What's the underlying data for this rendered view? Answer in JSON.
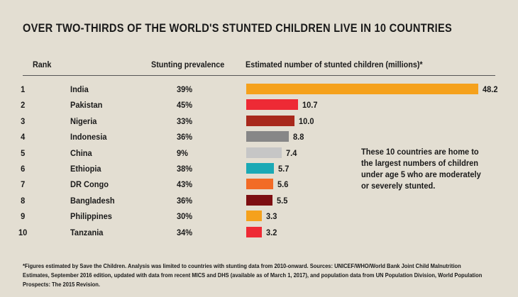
{
  "chart_data": {
    "type": "bar",
    "title": "OVER TWO-THIRDS OF THE WORLD'S STUNTED CHILDREN LIVE IN 10 COUNTRIES",
    "columns": {
      "rank": "Rank",
      "prevalence": "Stunting prevalence",
      "estimate": "Estimated number of stunted children (millions)*"
    },
    "rows": [
      {
        "rank": "1",
        "country": "India",
        "prevalence": "39%",
        "value": 48.2,
        "label": "48.2",
        "color": "#f5a11c"
      },
      {
        "rank": "2",
        "country": "Pakistan",
        "prevalence": "45%",
        "value": 10.7,
        "label": "10.7",
        "color": "#ee2a35"
      },
      {
        "rank": "3",
        "country": "Nigeria",
        "prevalence": "33%",
        "value": 10.0,
        "label": "10.0",
        "color": "#a8281c"
      },
      {
        "rank": "4",
        "country": "Indonesia",
        "prevalence": "36%",
        "value": 8.8,
        "label": "8.8",
        "color": "#878787"
      },
      {
        "rank": "5",
        "country": "China",
        "prevalence": "9%",
        "value": 7.4,
        "label": "7.4",
        "color": "#c6c6c6"
      },
      {
        "rank": "6",
        "country": "Ethiopia",
        "prevalence": "38%",
        "value": 5.7,
        "label": "5.7",
        "color": "#1ba9b5"
      },
      {
        "rank": "7",
        "country": "DR Congo",
        "prevalence": "43%",
        "value": 5.6,
        "label": "5.6",
        "color": "#f26b26"
      },
      {
        "rank": "8",
        "country": "Bangladesh",
        "prevalence": "36%",
        "value": 5.5,
        "label": "5.5",
        "color": "#7d0e12"
      },
      {
        "rank": "9",
        "country": "Philippines",
        "prevalence": "30%",
        "value": 3.3,
        "label": "3.3",
        "color": "#f5a11c"
      },
      {
        "rank": "10",
        "country": "Tanzania",
        "prevalence": "34%",
        "value": 3.2,
        "label": "3.2",
        "color": "#ee2a35"
      }
    ],
    "annotation": "These 10 countries are home to the largest numbers of children under age 5 who are moderately or severely stunted.",
    "footnote": "*Figures estimated by Save the Children. Analysis was limited to countries with stunting data from 2010-onward. Sources: UNICEF/WHO/World Bank Joint Child Malnutrition Estimates, September 2016 edition, updated with data from recent MICS and DHS (available as of March 1, 2017), and population data from UN Population Division, World Population Prospects: The 2015 Revision."
  }
}
